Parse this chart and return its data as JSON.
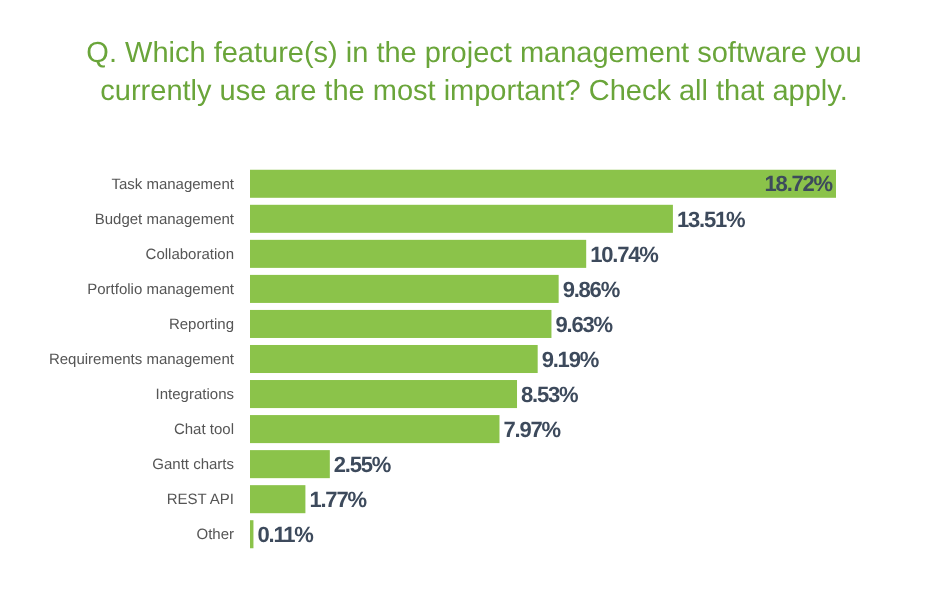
{
  "chart_data": {
    "type": "bar",
    "orientation": "horizontal",
    "title": "Q. Which feature(s) in the project management software you currently use are the most important? Check all that apply.",
    "categories": [
      "Task management",
      "Budget management",
      "Collaboration",
      "Portfolio management",
      "Reporting",
      "Requirements management",
      "Integrations",
      "Chat tool",
      "Gantt charts",
      "REST API",
      "Other"
    ],
    "values": [
      18.72,
      13.51,
      10.74,
      9.86,
      9.63,
      9.19,
      8.53,
      7.97,
      2.55,
      1.77,
      0.11
    ],
    "value_labels": [
      "18.72%",
      "13.51%",
      "10.74%",
      "9.86%",
      "9.63%",
      "9.19%",
      "8.53%",
      "7.97%",
      "2.55%",
      "1.77%",
      "0.11%"
    ],
    "color": "#8bc34a"
  }
}
